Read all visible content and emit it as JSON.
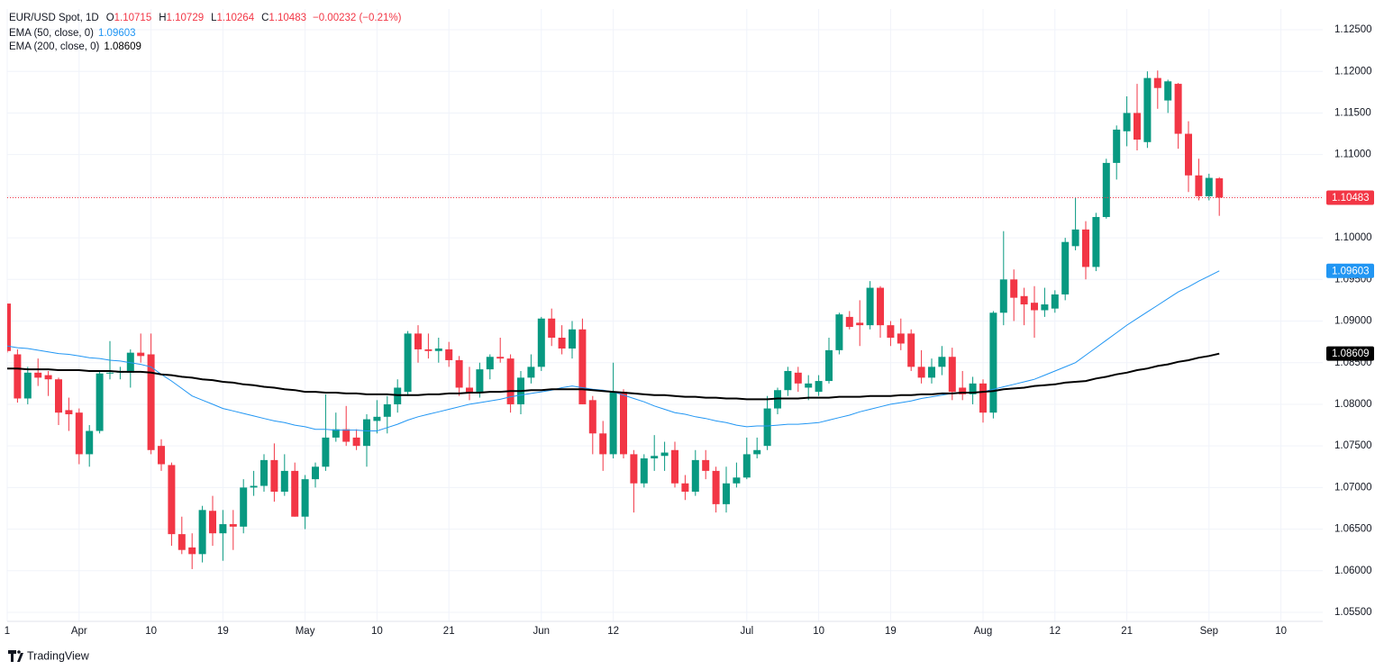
{
  "chart_data": {
    "type": "candlestick",
    "title": "EUR/USD Spot, 1D",
    "ohlc_keys": [
      "O",
      "H",
      "L",
      "C"
    ],
    "change_label": "−0.00232 (−0.21%)",
    "brand": "TradingView",
    "up_color": "#089981",
    "down_color": "#f23645",
    "grid": true,
    "ylim": [
      1.05392,
      1.12749
    ],
    "yticks": [
      {
        "value": 1.055,
        "label": "1.05500"
      },
      {
        "value": 1.06,
        "label": "1.06000"
      },
      {
        "value": 1.065,
        "label": "1.06500"
      },
      {
        "value": 1.07,
        "label": "1.07000"
      },
      {
        "value": 1.075,
        "label": "1.07500"
      },
      {
        "value": 1.08,
        "label": "1.08000"
      },
      {
        "value": 1.085,
        "label": "1.08500"
      },
      {
        "value": 1.09,
        "label": "1.09000"
      },
      {
        "value": 1.095,
        "label": "1.09500"
      },
      {
        "value": 1.1,
        "label": "1.10000"
      },
      {
        "value": 1.105,
        "label": "1.10500"
      },
      {
        "value": 1.11,
        "label": "1.11000"
      },
      {
        "value": 1.115,
        "label": "1.11500"
      },
      {
        "value": 1.12,
        "label": "1.12000"
      },
      {
        "value": 1.125,
        "label": "1.12500"
      }
    ],
    "categories": [
      "1",
      null,
      null,
      null,
      null,
      null,
      null,
      "Apr",
      null,
      null,
      null,
      null,
      null,
      null,
      "10",
      null,
      null,
      null,
      null,
      null,
      null,
      "19",
      null,
      null,
      null,
      null,
      null,
      null,
      null,
      "May",
      null,
      null,
      null,
      null,
      null,
      null,
      "10",
      null,
      null,
      null,
      null,
      null,
      null,
      "21",
      null,
      null,
      null,
      null,
      null,
      null,
      null,
      null,
      "Jun",
      null,
      null,
      null,
      null,
      null,
      null,
      "12",
      null,
      null,
      null,
      null,
      null,
      null,
      null,
      null,
      null,
      null,
      null,
      null,
      "Jul",
      null,
      null,
      null,
      null,
      null,
      null,
      "10",
      null,
      null,
      null,
      null,
      null,
      null,
      "19",
      null,
      null,
      null,
      null,
      null,
      null,
      null,
      null,
      "Aug",
      null,
      null,
      null,
      null,
      null,
      null,
      "12",
      null,
      null,
      null,
      null,
      null,
      null,
      "21",
      null,
      null,
      null,
      null,
      null,
      null,
      null,
      "Sep",
      null,
      null,
      null,
      null,
      null,
      null,
      "10",
      null,
      null,
      null
    ],
    "open": [
      1.0921,
      1.086,
      1.0807,
      1.0838,
      1.0835,
      1.083,
      1.0793,
      1.079,
      1.074,
      1.0768,
      1.0837,
      1.0838,
      1.0838,
      1.0862,
      1.086,
      1.075,
      1.0727,
      1.0644,
      1.0628,
      1.062,
      1.0672,
      1.0645,
      1.0656,
      1.0653,
      1.07,
      1.0702,
      1.0733,
      1.0695,
      1.072,
      1.0665,
      1.071,
      1.0725,
      1.076,
      1.077,
      1.076,
      1.075,
      1.078,
      1.0785,
      1.08,
      1.0815,
      1.0885,
      1.0866,
      1.0864,
      1.0866,
      1.0853,
      1.082,
      1.0815,
      1.0842,
      1.0857,
      1.0855,
      1.08,
      1.0832,
      1.0845,
      1.0903,
      1.088,
      1.0867,
      1.089,
      1.0805,
      1.0765,
      1.074,
      1.0815,
      1.074,
      1.0705,
      1.0735,
      1.0738,
      1.0745,
      1.0705,
      1.0695,
      1.0733,
      1.072,
      1.068,
      1.0705,
      1.0712,
      1.074,
      1.075,
      1.0795,
      1.0817,
      1.0838,
      1.082,
      1.0815,
      1.0828,
      1.0865,
      1.0905,
      1.0898,
      1.0895,
      1.094,
      1.0895,
      1.0885,
      1.0885,
      1.0845,
      1.0832,
      1.0845,
      1.0857,
      1.082,
      1.0812,
      1.0825,
      1.079,
      1.091,
      1.095,
      1.093,
      1.0922,
      1.0913,
      1.0915,
      1.0932,
      1.099,
      1.101,
      1.0965,
      1.1025,
      1.109,
      1.1128,
      1.115,
      1.1115,
      1.1192,
      1.1165,
      1.1185,
      1.1125,
      1.1075,
      1.105,
      1.10715,
      null,
      null,
      null,
      null,
      null,
      null,
      null,
      null,
      null
    ],
    "high": [
      1.0921,
      1.0866,
      1.0845,
      1.0855,
      1.084,
      1.0832,
      1.0808,
      1.0795,
      1.0775,
      1.084,
      1.0876,
      1.0845,
      1.0866,
      1.0885,
      1.0885,
      1.0758,
      1.073,
      1.0665,
      1.0645,
      1.0678,
      1.069,
      1.0673,
      1.0673,
      1.071,
      1.072,
      1.074,
      1.0753,
      1.074,
      1.073,
      1.0715,
      1.073,
      1.0812,
      1.079,
      1.0798,
      1.077,
      1.0788,
      1.0805,
      1.081,
      1.083,
      1.0888,
      1.0895,
      1.0885,
      1.088,
      1.0875,
      1.0858,
      1.0845,
      1.085,
      1.086,
      1.088,
      1.086,
      1.084,
      1.086,
      1.0905,
      1.0915,
      1.0895,
      1.09,
      1.0903,
      1.081,
      1.078,
      1.085,
      1.0818,
      1.0745,
      1.074,
      1.0763,
      1.0755,
      1.0755,
      1.0715,
      1.0745,
      1.0745,
      1.0725,
      1.0725,
      1.073,
      1.076,
      1.076,
      1.081,
      1.082,
      1.0845,
      1.0845,
      1.0835,
      1.0835,
      1.088,
      1.091,
      1.0912,
      1.0925,
      1.0948,
      1.0942,
      1.09,
      1.0903,
      1.089,
      1.0865,
      1.0855,
      1.087,
      1.0868,
      1.084,
      1.0833,
      1.083,
      1.0912,
      1.1008,
      1.0962,
      1.094,
      1.0942,
      1.094,
      1.0937,
      1.1,
      1.1048,
      1.102,
      1.103,
      1.1095,
      1.1135,
      1.117,
      1.1185,
      1.12,
      1.1201,
      1.119,
      1.1186,
      1.114,
      1.1095,
      1.1077,
      1.10729,
      null,
      null,
      null,
      null,
      null,
      null,
      null,
      null,
      null
    ],
    "low": [
      1.0862,
      1.0802,
      1.08,
      1.0822,
      1.081,
      1.0775,
      1.0768,
      1.0728,
      1.0725,
      1.0765,
      1.083,
      1.083,
      1.082,
      1.085,
      1.074,
      1.072,
      1.063,
      1.062,
      1.0602,
      1.061,
      1.063,
      1.0612,
      1.0625,
      1.0645,
      1.069,
      1.0695,
      1.0683,
      1.069,
      1.0665,
      1.065,
      1.07,
      1.072,
      1.0755,
      1.075,
      1.0745,
      1.0725,
      1.0765,
      1.0765,
      1.079,
      1.081,
      1.085,
      1.0855,
      1.085,
      1.0845,
      1.081,
      1.0805,
      1.0808,
      1.083,
      1.085,
      1.079,
      1.0788,
      1.0825,
      1.084,
      1.087,
      1.086,
      1.0855,
      1.08,
      1.074,
      1.072,
      1.0735,
      1.0735,
      1.067,
      1.07,
      1.072,
      1.072,
      1.07,
      1.0685,
      1.069,
      1.071,
      1.067,
      1.067,
      1.07,
      1.071,
      1.0735,
      1.0745,
      1.0788,
      1.081,
      1.0815,
      1.0805,
      1.081,
      1.0825,
      1.086,
      1.089,
      1.087,
      1.089,
      1.088,
      1.087,
      1.0865,
      1.084,
      1.0825,
      1.0825,
      1.0835,
      1.0805,
      1.0805,
      1.08,
      1.0778,
      1.0783,
      1.0895,
      1.09,
      1.0895,
      1.088,
      1.0905,
      1.091,
      1.0925,
      1.0985,
      1.095,
      1.096,
      1.1023,
      1.107,
      1.111,
      1.1105,
      1.1108,
      1.1155,
      1.115,
      1.1107,
      1.1055,
      1.1045,
      1.1045,
      1.10264,
      null,
      null,
      null,
      null,
      null,
      null,
      null,
      null,
      null
    ],
    "close": [
      1.0864,
      1.0807,
      1.0838,
      1.0832,
      1.083,
      1.079,
      1.0788,
      1.074,
      1.0768,
      1.0837,
      1.0838,
      1.084,
      1.0862,
      1.0858,
      1.0745,
      1.0728,
      1.0644,
      1.0625,
      1.062,
      1.0673,
      1.0645,
      1.0656,
      1.0653,
      1.07,
      1.0702,
      1.0733,
      1.0695,
      1.072,
      1.0665,
      1.071,
      1.0725,
      1.076,
      1.077,
      1.0755,
      1.075,
      1.0782,
      1.0785,
      1.08,
      1.082,
      1.0885,
      1.0866,
      1.0864,
      1.0867,
      1.0853,
      1.082,
      1.0813,
      1.0842,
      1.0857,
      1.0855,
      1.08,
      1.0832,
      1.0845,
      1.0903,
      1.088,
      1.0867,
      1.089,
      1.08,
      1.0765,
      1.074,
      1.0815,
      1.074,
      1.0705,
      1.0735,
      1.0738,
      1.0742,
      1.0705,
      1.0695,
      1.0733,
      1.072,
      1.068,
      1.0705,
      1.0712,
      1.074,
      1.0745,
      1.0795,
      1.0817,
      1.084,
      1.0825,
      1.0825,
      1.0828,
      1.0865,
      1.0908,
      1.0893,
      1.0895,
      1.094,
      1.0895,
      1.088,
      1.0873,
      1.0845,
      1.0832,
      1.0845,
      1.0857,
      1.0815,
      1.0812,
      1.0825,
      1.079,
      1.091,
      1.095,
      1.0928,
      1.092,
      1.0913,
      1.092,
      1.0932,
      1.0995,
      1.101,
      1.0965,
      1.1025,
      1.109,
      1.113,
      1.115,
      1.1118,
      1.1192,
      1.118,
      1.1188,
      1.1125,
      1.1075,
      1.105,
      1.1072,
      1.10483,
      null,
      null,
      null,
      null,
      null,
      null,
      null,
      null,
      null
    ],
    "series": [
      {
        "name": "EMA (50, close, 0)",
        "color": "#2196f3",
        "values": [
          1.087,
          1.0868,
          1.0867,
          1.0865,
          1.0863,
          1.0861,
          1.086,
          1.0858,
          1.0856,
          1.0855,
          1.0853,
          1.0852,
          1.085,
          1.0848,
          1.0845,
          1.0836,
          1.0828,
          1.0819,
          1.081,
          1.0805,
          1.08,
          1.0795,
          1.0792,
          1.0789,
          1.0786,
          1.0783,
          1.078,
          1.0778,
          1.0775,
          1.0773,
          1.077,
          1.077,
          1.0769,
          1.0769,
          1.0769,
          1.0768,
          1.0768,
          1.0772,
          1.0776,
          1.0781,
          1.0785,
          1.0788,
          1.0791,
          1.0794,
          1.0797,
          1.08,
          1.0802,
          1.0804,
          1.0806,
          1.0809,
          1.0811,
          1.0813,
          1.0815,
          1.0817,
          1.082,
          1.0822,
          1.082,
          1.0818,
          1.0817,
          1.0815,
          1.0811,
          1.0807,
          1.0803,
          1.0798,
          1.0794,
          1.079,
          1.0788,
          1.0785,
          1.0783,
          1.078,
          1.0778,
          1.0775,
          1.0773,
          1.0774,
          1.0774,
          1.0775,
          1.0776,
          1.0776,
          1.0777,
          1.0778,
          1.0781,
          1.0784,
          1.0787,
          1.0791,
          1.0794,
          1.0797,
          1.08,
          1.0802,
          1.0804,
          1.0807,
          1.0809,
          1.0811,
          1.0813,
          1.0814,
          1.0814,
          1.0815,
          1.0818,
          1.0821,
          1.0824,
          1.0827,
          1.083,
          1.0835,
          1.084,
          1.0845,
          1.085,
          1.0859,
          1.0868,
          1.0877,
          1.0886,
          1.0895,
          1.0903,
          1.0911,
          1.0919,
          1.0927,
          1.0935,
          1.0941,
          1.0948,
          1.0954,
          1.09603,
          null,
          null,
          null,
          null,
          null,
          null,
          null,
          null,
          null
        ]
      },
      {
        "name": "EMA (200, close, 0)",
        "color": "#000000",
        "values": [
          1.0843,
          1.0843,
          1.0842,
          1.0842,
          1.0842,
          1.0841,
          1.0841,
          1.0841,
          1.084,
          1.084,
          1.084,
          1.0839,
          1.0839,
          1.0839,
          1.0838,
          1.0836,
          1.0835,
          1.0833,
          1.0832,
          1.083,
          1.0829,
          1.0827,
          1.0826,
          1.0824,
          1.0823,
          1.0821,
          1.082,
          1.0818,
          1.0817,
          1.0815,
          1.0815,
          1.0814,
          1.0814,
          1.0813,
          1.0813,
          1.0812,
          1.0812,
          1.0812,
          1.0811,
          1.0811,
          1.0811,
          1.0812,
          1.0812,
          1.0813,
          1.0813,
          1.0814,
          1.0814,
          1.0815,
          1.0815,
          1.0816,
          1.0816,
          1.0817,
          1.0817,
          1.0818,
          1.0818,
          1.0818,
          1.0818,
          1.0817,
          1.0816,
          1.0815,
          1.0814,
          1.0813,
          1.0812,
          1.0811,
          1.0811,
          1.081,
          1.0809,
          1.0809,
          1.0808,
          1.0808,
          1.0807,
          1.0807,
          1.0806,
          1.0806,
          1.0806,
          1.0807,
          1.0807,
          1.0807,
          1.0808,
          1.0808,
          1.0808,
          1.0809,
          1.0809,
          1.0809,
          1.081,
          1.081,
          1.081,
          1.0811,
          1.0811,
          1.0812,
          1.0812,
          1.0813,
          1.0813,
          1.0814,
          1.0814,
          1.0815,
          1.0816,
          1.0818,
          1.0819,
          1.082,
          1.0822,
          1.0823,
          1.0824,
          1.0826,
          1.0827,
          1.0828,
          1.0831,
          1.0833,
          1.0836,
          1.0838,
          1.0841,
          1.0843,
          1.0846,
          1.0848,
          1.0851,
          1.0853,
          1.0856,
          1.0858,
          1.08609,
          null,
          null,
          null,
          null,
          null,
          null,
          null,
          null,
          null
        ]
      }
    ]
  }
}
